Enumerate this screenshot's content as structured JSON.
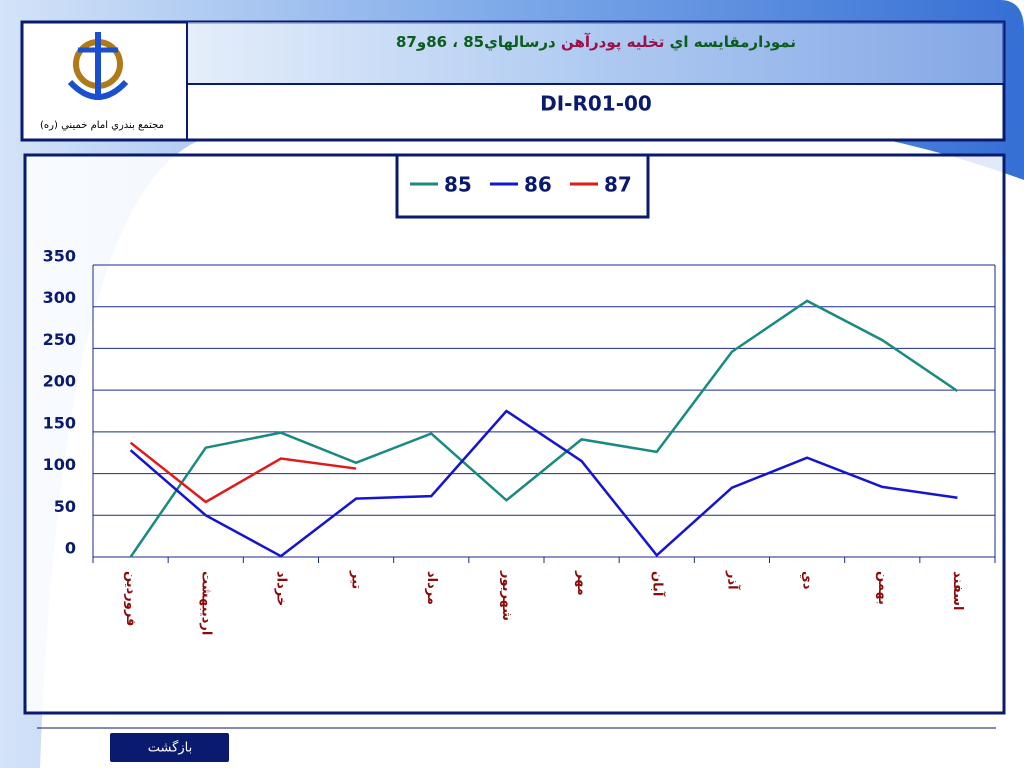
{
  "header": {
    "caption": "مجتمع بندري امام خميني (ره)",
    "title": [
      {
        "text": "نمودارمقايسه اي ",
        "color": "#0b5d1e"
      },
      {
        "text": "تخليه پودرآهن ",
        "color": "#9b1048"
      },
      {
        "text": "درسالهاي85 ، 86و87",
        "color": "#0b5d1e"
      }
    ],
    "code": "DI-R01-00"
  },
  "chart_data": {
    "type": "line",
    "legend": "top",
    "grid": true,
    "categories": [
      "فروردين",
      "ارديبهشت",
      "خرداد",
      "تير",
      "مرداد",
      "شهريور",
      "مهر",
      "آبان",
      "آذر",
      "دي",
      "بهمن",
      "اسفند"
    ],
    "ylim": [
      0,
      350
    ],
    "yticks": [
      0,
      50,
      100,
      150,
      200,
      250,
      300,
      350
    ],
    "series": [
      {
        "name": "85",
        "color": "#1a8a80",
        "values": [
          0,
          131,
          149,
          113,
          148,
          68,
          141,
          126,
          246,
          307,
          260,
          199
        ]
      },
      {
        "name": "86",
        "color": "#1414d2",
        "values": [
          128,
          50,
          1,
          70,
          73,
          175,
          115,
          2,
          83,
          119,
          84,
          71
        ]
      },
      {
        "name": "87",
        "color": "#e01a1a",
        "values": [
          137,
          66,
          118,
          106,
          null,
          null,
          null,
          null,
          null,
          null,
          null,
          null
        ]
      }
    ]
  },
  "footer": {
    "button": "بازگشت"
  }
}
